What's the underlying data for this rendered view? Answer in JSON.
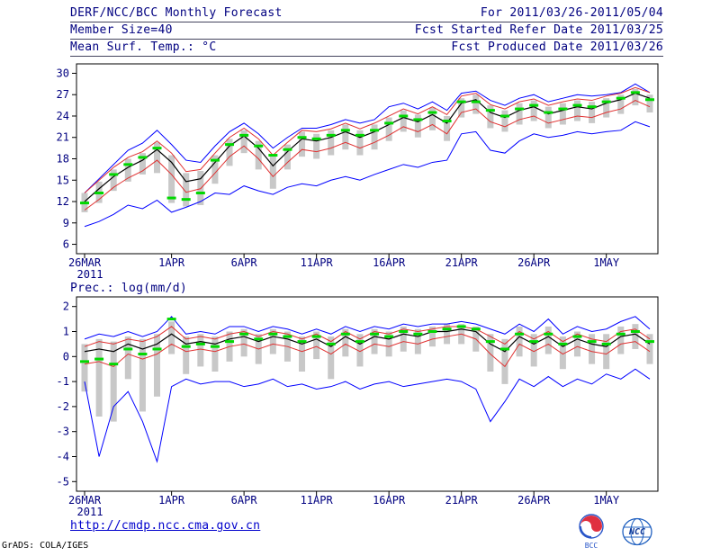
{
  "header": {
    "title": "DERF/NCC/BCC Monthly Forecast",
    "member_size": "Member Size=40",
    "variable_label": "Mean Surf. Temp.: °C",
    "for_range": "For 2011/03/26-2011/05/04",
    "refer_date": "Fcst Started Refer Date 2011/03/25",
    "produced_date": "Fcst Produced Date 2011/03/26"
  },
  "footer": {
    "url": "http://cmdp.ncc.cma.gov.cn",
    "grads_credit": "GrADS: COLA/IGES",
    "logo_left": "BCC",
    "logo_right": "NCC"
  },
  "colors": {
    "text": "#000080",
    "frame": "#000000",
    "envelope_blue": "#0000ff",
    "spread_red": "#e03030",
    "mean_black": "#000000",
    "median_green": "#00d800",
    "bar_gray": "#c8c8c8",
    "link_blue": "#0000cc"
  },
  "chart_data": [
    {
      "type": "line",
      "title": "Mean Surf. Temp.: °C",
      "ylim": [
        6,
        30
      ],
      "yticks": [
        6,
        9,
        12,
        15,
        18,
        21,
        24,
        27,
        30
      ],
      "n": 40,
      "x_labels": [
        {
          "index": 0,
          "label": "26MAR"
        },
        {
          "index": 6,
          "label": "1APR"
        },
        {
          "index": 11,
          "label": "6APR"
        },
        {
          "index": 16,
          "label": "11APR"
        },
        {
          "index": 21,
          "label": "16APR"
        },
        {
          "index": 26,
          "label": "21APR"
        },
        {
          "index": 31,
          "label": "26APR"
        },
        {
          "index": 36,
          "label": "1MAY"
        }
      ],
      "x_sub_label": "2011",
      "grid": false,
      "legend": "none",
      "bar_color": "#c8c8c8",
      "bars": {
        "low": [
          10.5,
          11.8,
          13.5,
          14.8,
          15.8,
          16.0,
          11.8,
          11.3,
          11.5,
          14.5,
          17.0,
          18.8,
          16.5,
          13.8,
          16.5,
          18.3,
          18.0,
          18.5,
          19.3,
          18.5,
          19.3,
          20.5,
          21.8,
          21.0,
          22.0,
          20.5,
          23.8,
          24.3,
          22.3,
          21.8,
          22.8,
          23.3,
          22.3,
          22.8,
          23.3,
          23.0,
          23.8,
          24.3,
          25.5,
          24.5
        ],
        "high": [
          13.2,
          14.8,
          16.5,
          18.0,
          18.8,
          20.3,
          18.5,
          16.0,
          16.3,
          18.5,
          20.8,
          22.0,
          20.5,
          18.3,
          20.0,
          21.8,
          21.5,
          22.0,
          22.8,
          22.0,
          22.8,
          23.8,
          24.8,
          24.2,
          25.2,
          24.0,
          26.5,
          27.0,
          25.5,
          24.8,
          25.8,
          26.2,
          25.3,
          25.8,
          26.2,
          26.0,
          26.5,
          27.0,
          27.8,
          27.0
        ]
      },
      "series": [
        {
          "name": "ensemble-max",
          "color": "#0000ff",
          "width": 1,
          "values": [
            13.2,
            15.2,
            17.2,
            19.2,
            20.2,
            22.0,
            20.0,
            17.8,
            17.5,
            19.8,
            21.8,
            23.0,
            21.5,
            19.5,
            21.0,
            22.3,
            22.3,
            22.8,
            23.5,
            23.0,
            23.5,
            25.3,
            25.8,
            25.0,
            26.0,
            24.8,
            27.2,
            27.5,
            26.2,
            25.5,
            26.5,
            27.0,
            26.0,
            26.5,
            27.0,
            26.8,
            27.0,
            27.3,
            28.5,
            27.3
          ]
        },
        {
          "name": "upper-spread",
          "color": "#e03030",
          "width": 1,
          "values": [
            13.2,
            15.0,
            16.8,
            18.2,
            19.0,
            20.5,
            18.8,
            16.2,
            16.5,
            18.8,
            21.0,
            22.3,
            20.8,
            18.5,
            20.3,
            22.0,
            21.8,
            22.2,
            23.0,
            22.2,
            23.0,
            24.0,
            25.0,
            24.3,
            25.3,
            24.2,
            26.8,
            27.2,
            25.6,
            25.0,
            26.0,
            26.4,
            25.5,
            26.0,
            26.4,
            26.2,
            26.8,
            27.2,
            28.0,
            27.3
          ]
        },
        {
          "name": "lower-spread",
          "color": "#e03030",
          "width": 1,
          "values": [
            10.8,
            12.3,
            14.0,
            15.3,
            16.3,
            17.8,
            15.8,
            13.3,
            13.8,
            16.0,
            18.3,
            19.8,
            18.0,
            15.5,
            17.5,
            19.3,
            19.0,
            19.5,
            20.3,
            19.5,
            20.3,
            21.3,
            22.5,
            21.8,
            22.8,
            21.5,
            24.5,
            25.0,
            23.2,
            22.5,
            23.5,
            24.0,
            23.0,
            23.5,
            24.0,
            23.8,
            24.5,
            25.0,
            26.2,
            25.3
          ]
        },
        {
          "name": "ensemble-min",
          "color": "#0000ff",
          "width": 1,
          "values": [
            8.5,
            9.2,
            10.2,
            11.5,
            11.0,
            12.2,
            10.5,
            11.2,
            12.0,
            13.2,
            13.0,
            14.2,
            13.5,
            13.0,
            14.0,
            14.5,
            14.2,
            15.0,
            15.5,
            15.0,
            15.8,
            16.5,
            17.2,
            16.8,
            17.5,
            17.8,
            21.5,
            21.8,
            19.2,
            18.8,
            20.5,
            21.5,
            21.0,
            21.3,
            21.8,
            21.5,
            21.8,
            22.0,
            23.2,
            22.5
          ]
        },
        {
          "name": "ensemble-mean",
          "color": "#000000",
          "width": 1.2,
          "values": [
            12.0,
            13.8,
            15.5,
            16.8,
            17.8,
            19.3,
            17.5,
            14.8,
            15.2,
            17.5,
            19.8,
            21.2,
            19.5,
            17.0,
            19.0,
            20.8,
            20.5,
            21.0,
            21.8,
            21.0,
            21.8,
            22.8,
            23.8,
            23.2,
            24.2,
            23.0,
            25.8,
            26.3,
            24.5,
            23.8,
            24.8,
            25.3,
            24.3,
            24.8,
            25.3,
            25.0,
            25.8,
            26.3,
            27.2,
            26.5
          ]
        },
        {
          "name": "median-markers",
          "color": "#00d800",
          "style": "dashes",
          "values": [
            11.8,
            13.2,
            15.8,
            17.2,
            18.2,
            19.5,
            12.5,
            12.3,
            13.2,
            17.8,
            20.0,
            21.3,
            19.8,
            18.5,
            19.3,
            21.0,
            20.8,
            21.3,
            22.0,
            21.3,
            22.0,
            23.0,
            24.0,
            23.5,
            24.5,
            23.3,
            26.0,
            26.0,
            24.8,
            24.0,
            25.0,
            25.5,
            24.5,
            25.0,
            25.5,
            25.3,
            26.0,
            26.5,
            27.3,
            26.3
          ]
        }
      ]
    },
    {
      "type": "line",
      "title": "Prec.: log(mm/d)",
      "ylim": [
        -5,
        2
      ],
      "yticks": [
        -5,
        -4,
        -3,
        -2,
        -1,
        0,
        1,
        2
      ],
      "n": 40,
      "x_labels": [
        {
          "index": 0,
          "label": "26MAR"
        },
        {
          "index": 6,
          "label": "1APR"
        },
        {
          "index": 11,
          "label": "6APR"
        },
        {
          "index": 16,
          "label": "11APR"
        },
        {
          "index": 21,
          "label": "16APR"
        },
        {
          "index": 26,
          "label": "21APR"
        },
        {
          "index": 31,
          "label": "26APR"
        },
        {
          "index": 36,
          "label": "1MAY"
        }
      ],
      "x_sub_label": "2011",
      "grid": false,
      "legend": "none",
      "bar_color": "#c8c8c8",
      "bars": {
        "low": [
          -1.4,
          -2.4,
          -2.6,
          -0.9,
          -2.2,
          -1.6,
          0.1,
          -0.7,
          -0.4,
          -0.6,
          -0.2,
          0.0,
          -0.3,
          0.1,
          -0.2,
          -0.6,
          -0.1,
          -0.9,
          0.0,
          -0.4,
          0.1,
          0.0,
          0.2,
          0.1,
          0.4,
          0.5,
          0.5,
          0.2,
          -0.6,
          -1.1,
          0.0,
          -0.4,
          0.1,
          -0.5,
          0.0,
          -0.3,
          -0.5,
          0.1,
          0.3,
          -0.3
        ],
        "high": [
          0.5,
          0.7,
          0.6,
          0.8,
          0.7,
          0.9,
          1.4,
          0.8,
          0.9,
          0.8,
          1.0,
          1.1,
          0.9,
          1.1,
          1.0,
          0.8,
          1.0,
          0.8,
          1.1,
          0.9,
          1.1,
          1.0,
          1.2,
          1.1,
          1.2,
          1.3,
          1.3,
          1.2,
          0.9,
          0.7,
          1.2,
          0.9,
          1.2,
          0.8,
          1.0,
          0.9,
          0.9,
          1.2,
          1.3,
          0.9
        ]
      },
      "series": [
        {
          "name": "ensemble-max",
          "color": "#0000ff",
          "width": 1,
          "values": [
            0.7,
            0.9,
            0.8,
            1.0,
            0.8,
            1.0,
            1.6,
            0.9,
            1.0,
            0.9,
            1.2,
            1.2,
            1.0,
            1.2,
            1.1,
            0.9,
            1.1,
            0.9,
            1.2,
            1.0,
            1.2,
            1.1,
            1.3,
            1.2,
            1.3,
            1.3,
            1.4,
            1.3,
            1.1,
            0.9,
            1.3,
            1.0,
            1.5,
            0.9,
            1.2,
            1.0,
            1.1,
            1.4,
            1.6,
            1.1
          ]
        },
        {
          "name": "upper-spread",
          "color": "#e03030",
          "width": 1,
          "values": [
            0.4,
            0.6,
            0.5,
            0.7,
            0.6,
            0.8,
            1.2,
            0.7,
            0.8,
            0.7,
            0.9,
            1.0,
            0.8,
            1.0,
            0.9,
            0.7,
            0.9,
            0.6,
            1.0,
            0.7,
            1.0,
            0.9,
            1.1,
            1.0,
            1.1,
            1.2,
            1.2,
            1.1,
            0.8,
            0.5,
            1.0,
            0.7,
            1.0,
            0.6,
            0.9,
            0.7,
            0.6,
            1.0,
            1.1,
            0.7
          ]
        },
        {
          "name": "lower-spread",
          "color": "#e03030",
          "width": 1,
          "values": [
            -0.3,
            -0.2,
            -0.4,
            0.1,
            -0.1,
            0.1,
            0.5,
            0.2,
            0.3,
            0.2,
            0.4,
            0.5,
            0.3,
            0.5,
            0.4,
            0.2,
            0.4,
            0.1,
            0.5,
            0.2,
            0.5,
            0.4,
            0.6,
            0.5,
            0.7,
            0.8,
            0.9,
            0.7,
            0.1,
            -0.4,
            0.5,
            0.2,
            0.5,
            0.1,
            0.4,
            0.2,
            0.1,
            0.5,
            0.6,
            0.2
          ]
        },
        {
          "name": "ensemble-min",
          "color": "#0000ff",
          "width": 1,
          "values": [
            -1.0,
            -4.0,
            -2.0,
            -1.4,
            -2.6,
            -4.2,
            -1.2,
            -0.9,
            -1.1,
            -1.0,
            -1.0,
            -1.2,
            -1.1,
            -0.9,
            -1.2,
            -1.1,
            -1.3,
            -1.2,
            -1.0,
            -1.3,
            -1.1,
            -1.0,
            -1.2,
            -1.1,
            -1.0,
            -0.9,
            -1.0,
            -1.3,
            -2.6,
            -1.8,
            -0.9,
            -1.2,
            -0.8,
            -1.2,
            -0.9,
            -1.1,
            -0.7,
            -0.9,
            -0.5,
            -0.9
          ]
        },
        {
          "name": "ensemble-mean",
          "color": "#000000",
          "width": 1.2,
          "values": [
            0.2,
            0.3,
            0.2,
            0.5,
            0.3,
            0.5,
            0.9,
            0.5,
            0.6,
            0.5,
            0.7,
            0.8,
            0.6,
            0.8,
            0.7,
            0.5,
            0.7,
            0.4,
            0.8,
            0.5,
            0.8,
            0.7,
            0.9,
            0.8,
            1.0,
            1.0,
            1.1,
            1.0,
            0.5,
            0.2,
            0.8,
            0.5,
            0.8,
            0.4,
            0.7,
            0.5,
            0.4,
            0.8,
            0.9,
            0.5
          ]
        },
        {
          "name": "median-markers",
          "color": "#00d800",
          "style": "dashes",
          "values": [
            -0.2,
            -0.1,
            -0.3,
            0.3,
            0.1,
            0.3,
            1.5,
            0.4,
            0.5,
            0.4,
            0.6,
            0.9,
            0.7,
            0.9,
            0.8,
            0.6,
            0.8,
            0.5,
            0.9,
            0.6,
            0.9,
            0.8,
            1.0,
            0.9,
            1.0,
            1.1,
            1.2,
            1.1,
            0.6,
            0.3,
            0.9,
            0.6,
            0.9,
            0.5,
            0.8,
            0.6,
            0.5,
            0.9,
            1.0,
            0.6
          ]
        }
      ]
    }
  ]
}
